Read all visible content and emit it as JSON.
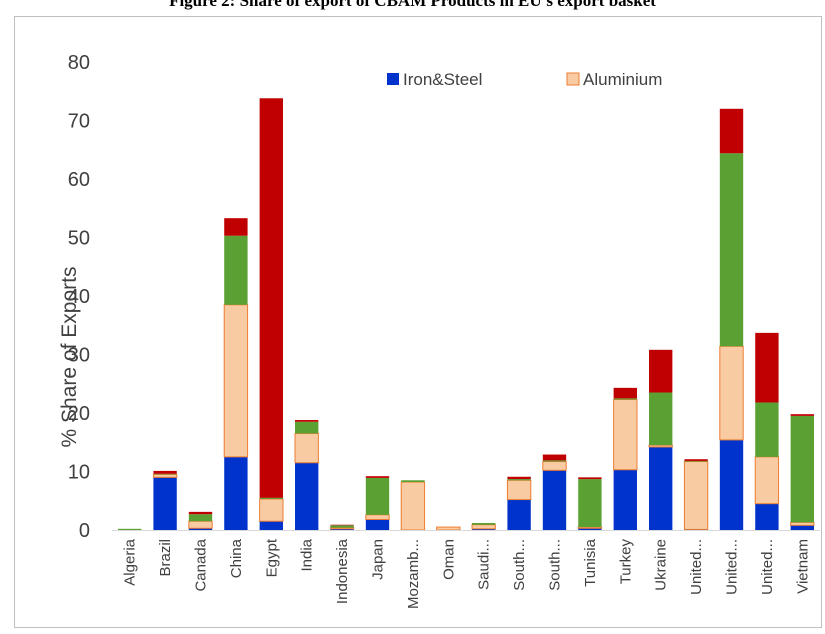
{
  "figure_title": "Figure 2: Share of export of CBAM Products in EU's export basket",
  "chart_data": {
    "type": "bar",
    "stacked": true,
    "ylabel": "% Share of Exports",
    "xlabel": "",
    "ylim": [
      0,
      80
    ],
    "yticks": [
      0,
      10,
      20,
      30,
      40,
      50,
      60,
      70,
      80
    ],
    "grid": false,
    "legend_position": "top-right",
    "categories": [
      "Algeria",
      "Brazil",
      "Canada",
      "China",
      "Egypt",
      "India",
      "Indonesia",
      "Japan",
      "Mozamb...",
      "Oman",
      "Saudi...",
      "South...",
      "South...",
      "Tunisia",
      "Turkey",
      "Ukraine",
      "United...",
      "United...",
      "United...",
      "Vietnam"
    ],
    "series": [
      {
        "name": "Iron&Steel",
        "color": "#0033cc",
        "values": [
          0,
          9,
          0.3,
          12.5,
          1.5,
          11.5,
          0.2,
          1.8,
          0,
          0,
          0.2,
          5.2,
          10.2,
          0.3,
          10.3,
          14.2,
          0.1,
          15.4,
          4.5,
          0.8
        ]
      },
      {
        "name": "Aluminium",
        "color": "#f8cba3",
        "values": [
          0,
          0.5,
          1.2,
          26,
          3.8,
          5,
          0.2,
          0.8,
          8.2,
          0.5,
          0.7,
          3.3,
          1.5,
          0.2,
          12,
          0.3,
          11.6,
          16,
          8,
          0.5
        ]
      },
      {
        "name": "",
        "color": "#5aa032",
        "values": [
          0.2,
          0.1,
          1.2,
          11.8,
          0.2,
          2,
          0.4,
          6.3,
          0.3,
          0,
          0.3,
          0.2,
          0.2,
          8.2,
          0.2,
          9,
          0.1,
          33,
          9.3,
          18.2
        ]
      },
      {
        "name": "",
        "color": "#c00000",
        "values": [
          0,
          0.5,
          0.4,
          3,
          68.3,
          0.3,
          0.1,
          0.3,
          0,
          0,
          0,
          0.4,
          1,
          0.3,
          1.8,
          7.3,
          0.3,
          7.6,
          11.9,
          0.3
        ]
      }
    ]
  }
}
